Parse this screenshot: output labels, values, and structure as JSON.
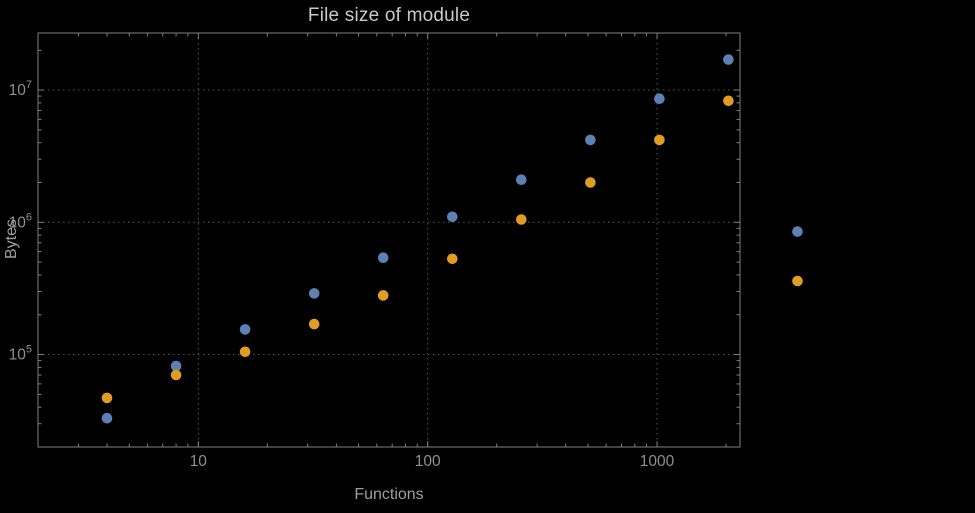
{
  "chart_data": {
    "type": "scatter",
    "title": "File size of module",
    "xlabel": "Functions",
    "ylabel": "Bytes",
    "x_scale": "log",
    "y_scale": "log",
    "xlim": [
      2,
      2300
    ],
    "ylim": [
      20000,
      27000000
    ],
    "x_ticks": [
      10,
      100,
      1000
    ],
    "x_tick_labels": [
      "10",
      "100",
      "1000"
    ],
    "y_ticks": [
      100000,
      1000000,
      10000000
    ],
    "y_tick_labels": [
      {
        "base": "10",
        "exp": "5"
      },
      {
        "base": "10",
        "exp": "6"
      },
      {
        "base": "10",
        "exp": "7"
      }
    ],
    "grid": "dotted-major",
    "legend": "none",
    "x": [
      4,
      8,
      16,
      32,
      64,
      128,
      256,
      512,
      1024,
      2048,
      4096
    ],
    "series": [
      {
        "name": "blue-series",
        "color": "#5e81b5",
        "values": [
          33000,
          82000,
          155000,
          290000,
          540000,
          1100000,
          2100000,
          4200000,
          8600000,
          17000000,
          850000
        ]
      },
      {
        "name": "orange-series",
        "color": "#e19c24",
        "values": [
          47000,
          70000,
          105000,
          170000,
          280000,
          530000,
          1050000,
          2000000,
          4200000,
          8300000,
          360000
        ]
      }
    ],
    "style": {
      "background": "#000000",
      "frame_color": "#7f7f7f",
      "grid_color": "#585858",
      "tick_color": "#7f7f7f",
      "tick_label_color": "#8f8f8f",
      "title_color": "#c8c8c8",
      "axis_label_color": "#9e9e9e",
      "point_radius": 5.3
    }
  }
}
